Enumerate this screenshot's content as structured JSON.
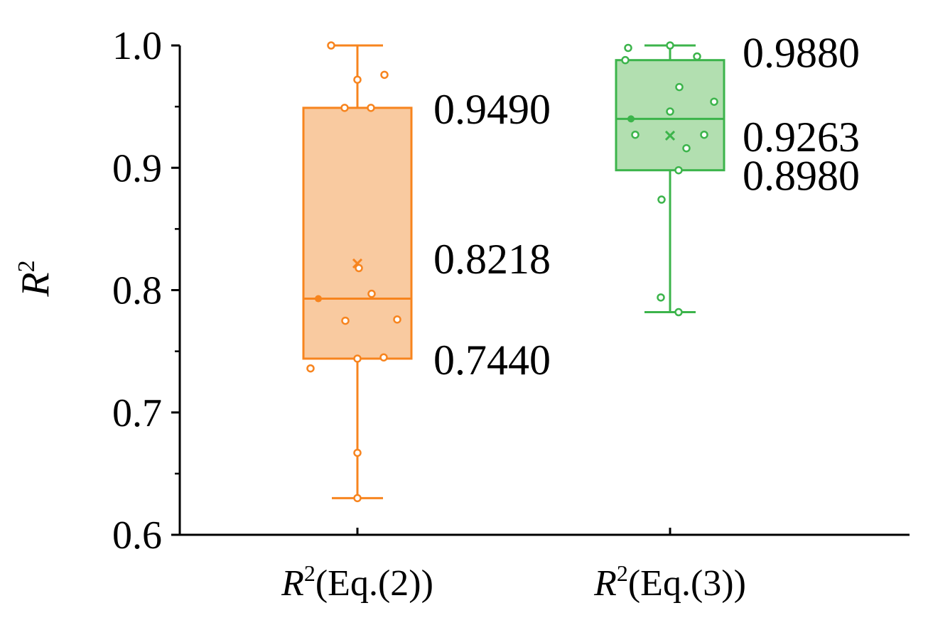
{
  "chart_data": {
    "type": "box",
    "title": "",
    "ylabel": "R",
    "ylabel_superscript": "2",
    "ylim": [
      0.6,
      1.0
    ],
    "yticks": [
      "0.6",
      "0.7",
      "0.8",
      "0.9",
      "1.0"
    ],
    "series": [
      {
        "name": "R2(Eq.(2))",
        "label_parts": {
          "var": "R",
          "sup": "2",
          "rest": "(Eq.(2))"
        },
        "color": "#f7841e",
        "fill": "#f9caa0",
        "q1": 0.744,
        "median": 0.793,
        "q3": 0.949,
        "mean": 0.8218,
        "whisker_low": 0.63,
        "whisker_high": 1.0,
        "points": [
          1.0,
          0.972,
          0.976,
          0.949,
          0.949,
          0.818,
          0.797,
          0.775,
          0.776,
          0.744,
          0.745,
          0.736,
          0.667,
          0.63
        ],
        "annotations": [
          "0.9490",
          "0.8218",
          "0.7440"
        ]
      },
      {
        "name": "R2(Eq.(3))",
        "label_parts": {
          "var": "R",
          "sup": "2",
          "rest": "(Eq.(3))"
        },
        "color": "#3cb44b",
        "fill": "#b2dfb0",
        "q1": 0.898,
        "median": 0.94,
        "q3": 0.988,
        "mean": 0.9263,
        "whisker_low": 0.782,
        "whisker_high": 1.0,
        "points": [
          0.998,
          1.0,
          0.991,
          0.988,
          0.966,
          0.954,
          0.946,
          0.927,
          0.927,
          0.916,
          0.898,
          0.874,
          0.794,
          0.782
        ],
        "annotations": [
          "0.9880",
          "0.9263",
          "0.8980"
        ]
      }
    ]
  }
}
